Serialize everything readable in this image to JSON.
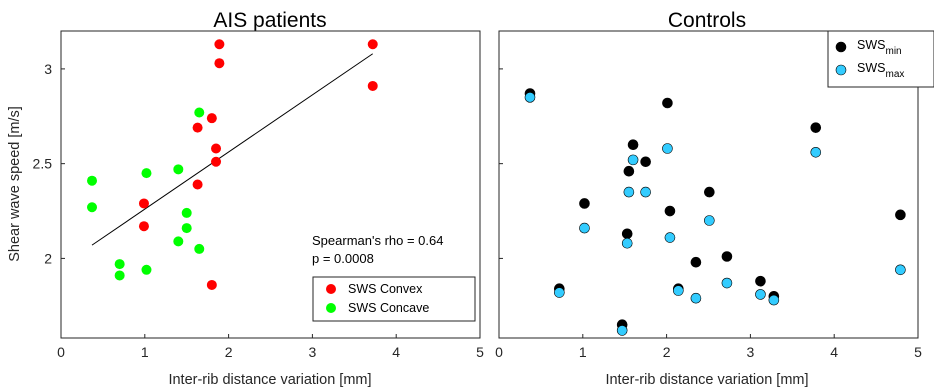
{
  "chart_data": [
    {
      "type": "scatter",
      "title": "AIS patients",
      "xlabel": "Inter-rib distance variation [mm]",
      "ylabel": "Shear wave speed [m/s]",
      "xlim": [
        0,
        5
      ],
      "ylim": [
        1.58,
        3.2
      ],
      "xticks": [
        "0",
        "1",
        "2",
        "3",
        "4",
        "5"
      ],
      "yticks": [
        "2",
        "2.5",
        "3"
      ],
      "grid": false,
      "legend_position": "bottom-right",
      "annotation": [
        "Spearman's rho = 0.64",
        "p = 0.0008"
      ],
      "fit_line": {
        "x": [
          0.37,
          3.72
        ],
        "y": [
          2.07,
          3.08
        ],
        "color": "#000000"
      },
      "series": [
        {
          "name": "SWS Convex",
          "color": "#ff0000",
          "points": [
            [
              0.99,
              2.29
            ],
            [
              0.99,
              2.17
            ],
            [
              1.63,
              2.39
            ],
            [
              1.63,
              2.69
            ],
            [
              1.8,
              2.74
            ],
            [
              1.85,
              2.58
            ],
            [
              1.85,
              2.51
            ],
            [
              1.89,
              3.03
            ],
            [
              1.89,
              3.13
            ],
            [
              1.8,
              1.86
            ],
            [
              3.72,
              3.13
            ],
            [
              3.72,
              2.91
            ]
          ]
        },
        {
          "name": "SWS Concave",
          "color": "#00ff00",
          "points": [
            [
              0.37,
              2.41
            ],
            [
              0.37,
              2.27
            ],
            [
              0.7,
              1.97
            ],
            [
              0.7,
              1.91
            ],
            [
              1.02,
              2.45
            ],
            [
              1.02,
              1.94
            ],
            [
              1.4,
              2.47
            ],
            [
              1.4,
              2.09
            ],
            [
              1.5,
              2.24
            ],
            [
              1.5,
              2.16
            ],
            [
              1.65,
              2.77
            ],
            [
              1.65,
              2.05
            ]
          ]
        }
      ]
    },
    {
      "type": "scatter",
      "title": "Controls",
      "xlabel": "Inter-rib distance variation [mm]",
      "ylabel": "",
      "xlim": [
        0,
        5
      ],
      "ylim": [
        1.58,
        3.2
      ],
      "xticks": [
        "0",
        "1",
        "2",
        "3",
        "4",
        "5"
      ],
      "yticks": [],
      "grid": false,
      "legend_position": "top-right",
      "series": [
        {
          "name": "SWS",
          "name_sub": "min",
          "color": "#000000",
          "points": [
            [
              0.37,
              2.87
            ],
            [
              0.72,
              1.84
            ],
            [
              1.02,
              2.29
            ],
            [
              1.47,
              1.65
            ],
            [
              1.53,
              2.13
            ],
            [
              1.55,
              2.46
            ],
            [
              1.6,
              2.6
            ],
            [
              1.75,
              2.51
            ],
            [
              2.01,
              2.82
            ],
            [
              2.04,
              2.25
            ],
            [
              2.14,
              1.84
            ],
            [
              2.35,
              1.98
            ],
            [
              2.51,
              2.35
            ],
            [
              2.72,
              2.01
            ],
            [
              3.12,
              1.88
            ],
            [
              3.28,
              1.8
            ],
            [
              3.78,
              2.69
            ],
            [
              4.79,
              2.23
            ]
          ]
        },
        {
          "name": "SWS",
          "name_sub": "max",
          "color": "#33ccff",
          "points": [
            [
              0.37,
              2.85
            ],
            [
              0.72,
              1.82
            ],
            [
              1.02,
              2.16
            ],
            [
              1.47,
              1.62
            ],
            [
              1.53,
              2.08
            ],
            [
              1.55,
              2.35
            ],
            [
              1.6,
              2.52
            ],
            [
              1.75,
              2.35
            ],
            [
              2.01,
              2.58
            ],
            [
              2.04,
              2.11
            ],
            [
              2.14,
              1.83
            ],
            [
              2.35,
              1.79
            ],
            [
              2.51,
              2.2
            ],
            [
              2.72,
              1.87
            ],
            [
              3.12,
              1.81
            ],
            [
              3.28,
              1.78
            ],
            [
              3.78,
              2.56
            ],
            [
              4.79,
              1.94
            ]
          ]
        }
      ]
    }
  ]
}
